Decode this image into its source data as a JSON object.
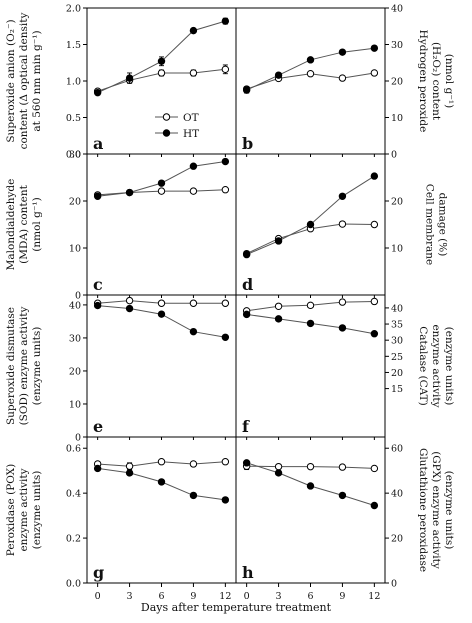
{
  "x_axis_label": "Days after temperature treatment",
  "legend": {
    "series": [
      "OT",
      "HT"
    ],
    "placement": "panel a, lower right"
  },
  "chart_data": [
    {
      "type": "line",
      "letter": "a",
      "side": "left",
      "ylabel": [
        "Superoxide anion (O₂⁻)",
        "content (Δ optical density",
        "at 560 nm min g⁻¹)"
      ],
      "x": [
        0,
        3,
        6,
        9,
        12
      ],
      "xticks": [
        0,
        3,
        6,
        9,
        12
      ],
      "xlim": [
        -1,
        13
      ],
      "ylim": [
        0,
        2.0
      ],
      "yticks": [
        "0.0",
        "0.5",
        "1.0",
        "1.5",
        "2.0"
      ],
      "series": [
        {
          "name": "OT",
          "marker": "open",
          "values": [
            0.86,
            1.01,
            1.11,
            1.11,
            1.16
          ],
          "err": [
            0.03,
            0.04,
            0.04,
            0.04,
            0.06
          ]
        },
        {
          "name": "HT",
          "marker": "filled",
          "values": [
            0.84,
            1.04,
            1.27,
            1.69,
            1.82
          ],
          "err": [
            0.03,
            0.07,
            0.06,
            0.03,
            0.04
          ]
        }
      ]
    },
    {
      "type": "line",
      "letter": "b",
      "side": "right",
      "ylabel": [
        "Hydrogen peroxide",
        "(H₂O₂) content",
        "(nmol g⁻¹)"
      ],
      "x": [
        0,
        3,
        6,
        9,
        12
      ],
      "xticks": [
        0,
        3,
        6,
        9,
        12
      ],
      "xlim": [
        -1,
        13
      ],
      "ylim": [
        0,
        40
      ],
      "yticks": [
        "0",
        "10",
        "20",
        "30",
        "40"
      ],
      "series": [
        {
          "name": "OT",
          "marker": "open",
          "values": [
            17.8,
            20.7,
            22.0,
            20.8,
            22.2
          ],
          "err": [
            0.6,
            0.5,
            0.4,
            0.3,
            0.3
          ]
        },
        {
          "name": "HT",
          "marker": "filled",
          "values": [
            17.5,
            21.6,
            25.8,
            27.9,
            29.0
          ],
          "err": [
            0.8,
            0.6,
            0.4,
            0.4,
            0.3
          ]
        }
      ]
    },
    {
      "type": "line",
      "letter": "c",
      "side": "left",
      "ylabel": [
        "Malondialdehyde",
        "(MDA) content",
        "(nmol g⁻¹)"
      ],
      "x": [
        0,
        3,
        6,
        9,
        12
      ],
      "xticks": [
        0,
        3,
        6,
        9,
        12
      ],
      "xlim": [
        -1,
        13
      ],
      "ylim": [
        0,
        30
      ],
      "yticks": [
        "0",
        "10",
        "20",
        "30"
      ],
      "series": [
        {
          "name": "OT",
          "marker": "open",
          "values": [
            21.3,
            21.8,
            22.1,
            22.1,
            22.4
          ],
          "err": [
            0.3,
            0.3,
            0.3,
            0.3,
            0.3
          ]
        },
        {
          "name": "HT",
          "marker": "filled",
          "values": [
            21.0,
            21.8,
            23.8,
            27.4,
            28.4
          ],
          "err": [
            0.3,
            0.3,
            0.3,
            0.4,
            0.3
          ]
        }
      ]
    },
    {
      "type": "line",
      "letter": "d",
      "side": "right",
      "ylabel": [
        "Cell membrane",
        "damage (%)"
      ],
      "x": [
        0,
        3,
        6,
        9,
        12
      ],
      "xticks": [
        0,
        3,
        6,
        9,
        12
      ],
      "xlim": [
        -1,
        13
      ],
      "ylim": [
        0,
        30
      ],
      "yticks": [
        "10",
        "20"
      ],
      "series": [
        {
          "name": "OT",
          "marker": "open",
          "values": [
            8.8,
            12.0,
            14.1,
            15.1,
            15.0
          ],
          "err": [
            0.3,
            0.3,
            0.3,
            0.3,
            0.4
          ]
        },
        {
          "name": "HT",
          "marker": "filled",
          "values": [
            8.6,
            11.5,
            15.0,
            21.0,
            25.3
          ],
          "err": [
            0.3,
            0.3,
            0.3,
            0.4,
            0.3
          ]
        }
      ]
    },
    {
      "type": "line",
      "letter": "e",
      "side": "left",
      "ylabel": [
        "Superoxide dismutase",
        "(SOD) enzyme activity",
        "(enzyme units)"
      ],
      "x": [
        0,
        3,
        6,
        9,
        12
      ],
      "xticks": [
        0,
        3,
        6,
        9,
        12
      ],
      "xlim": [
        -1,
        13
      ],
      "ylim": [
        0,
        43
      ],
      "yticks": [
        "0",
        "10",
        "20",
        "30",
        "40"
      ],
      "series": [
        {
          "name": "OT",
          "marker": "open",
          "values": [
            40.5,
            41.3,
            40.5,
            40.5,
            40.5
          ],
          "err": [
            0.5,
            0.5,
            0.4,
            0.4,
            0.4
          ]
        },
        {
          "name": "HT",
          "marker": "filled",
          "values": [
            39.8,
            38.9,
            37.2,
            31.9,
            30.2
          ],
          "err": [
            0.5,
            0.4,
            0.4,
            0.4,
            0.4
          ]
        }
      ]
    },
    {
      "type": "line",
      "letter": "f",
      "side": "right",
      "ylabel": [
        "Catalase (CAT)",
        "enzyme activity",
        "(enzyme units)"
      ],
      "x": [
        0,
        3,
        6,
        9,
        12
      ],
      "xticks": [
        0,
        3,
        6,
        9,
        12
      ],
      "xlim": [
        -1,
        13
      ],
      "ylim": [
        0,
        44
      ],
      "yticks": [
        "15",
        "20",
        "25",
        "30",
        "35",
        "40"
      ],
      "series": [
        {
          "name": "OT",
          "marker": "open",
          "values": [
            39.1,
            40.5,
            40.8,
            41.8,
            42.0
          ],
          "err": [
            0.6,
            0.5,
            0.6,
            0.6,
            0.5
          ]
        },
        {
          "name": "HT",
          "marker": "filled",
          "values": [
            38.0,
            36.6,
            35.2,
            33.8,
            32.0
          ],
          "err": [
            0.4,
            0.3,
            0.3,
            0.3,
            0.3
          ]
        }
      ]
    },
    {
      "type": "line",
      "letter": "g",
      "side": "left",
      "ylabel": [
        "Peroxidase (POX)",
        "enzyme activity",
        "(enzyme units)"
      ],
      "x": [
        0,
        3,
        6,
        9,
        12
      ],
      "xticks": [
        0,
        3,
        6,
        9,
        12
      ],
      "xlim": [
        -1,
        13
      ],
      "ylim": [
        0,
        0.65
      ],
      "yticks": [
        "0.0",
        "0.2",
        "0.4",
        "0.6"
      ],
      "series": [
        {
          "name": "OT",
          "marker": "open",
          "values": [
            0.53,
            0.52,
            0.54,
            0.53,
            0.54
          ],
          "err": [
            0.01,
            0.015,
            0.01,
            0.01,
            0.01
          ]
        },
        {
          "name": "HT",
          "marker": "filled",
          "values": [
            0.51,
            0.49,
            0.45,
            0.39,
            0.37
          ],
          "err": [
            0.01,
            0.01,
            0.01,
            0.01,
            0.01
          ]
        }
      ]
    },
    {
      "type": "line",
      "letter": "h",
      "side": "right",
      "ylabel": [
        "Glutathione peroxidase",
        "(GPX) enzyme activity",
        "(enzyme units)"
      ],
      "x": [
        0,
        3,
        6,
        9,
        12
      ],
      "xticks": [
        0,
        3,
        6,
        9,
        12
      ],
      "xlim": [
        -1,
        13
      ],
      "ylim": [
        0,
        65
      ],
      "yticks": [
        "0",
        "20",
        "40",
        "60"
      ],
      "series": [
        {
          "name": "OT",
          "marker": "open",
          "values": [
            52.0,
            51.8,
            51.8,
            51.6,
            51.0
          ],
          "err": [
            1.5,
            0.8,
            0.6,
            0.6,
            0.6
          ]
        },
        {
          "name": "HT",
          "marker": "filled",
          "values": [
            53.5,
            49.0,
            43.2,
            39.0,
            34.5
          ],
          "err": [
            0.8,
            0.8,
            0.6,
            0.6,
            0.6
          ]
        }
      ]
    }
  ]
}
